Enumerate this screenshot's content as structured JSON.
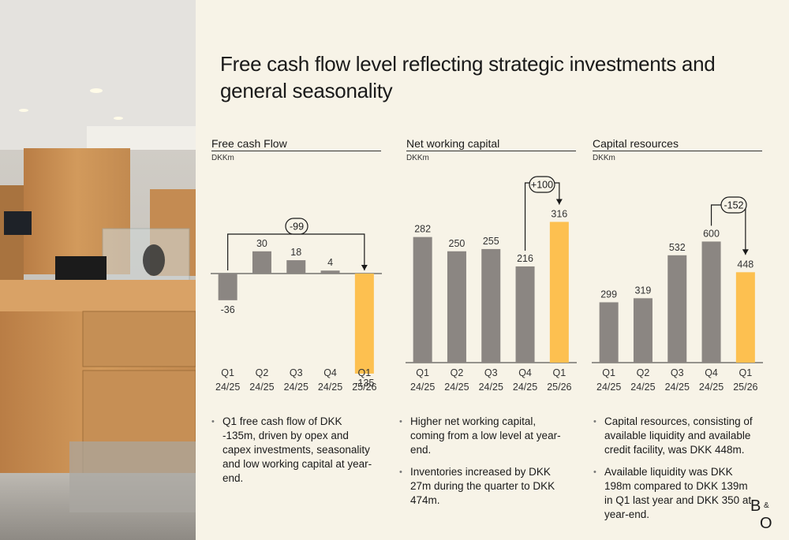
{
  "slide": {
    "title": "Free cash flow level reflecting strategic investments and general seasonality",
    "colors": {
      "bar": "#8b8682",
      "highlight": "#fdc050",
      "background": "#f7f3e7"
    }
  },
  "charts": [
    {
      "title": "Free cash Flow",
      "unit": "DKKm",
      "bullets": [
        "Q1 free cash flow of DKK -135m, driven by opex and capex investments, seasonality and low working capital at year-end."
      ]
    },
    {
      "title": "Net working capital",
      "unit": "DKKm",
      "bullets": [
        "Higher net working capital, coming from a low level at year-end.",
        "Inventories increased by DKK 27m during the quarter to DKK 474m."
      ]
    },
    {
      "title": "Capital resources",
      "unit": "DKKm",
      "bullets": [
        "Capital resources, consisting of available liquidity and available credit facility, was DKK 448m.",
        "Available liquidity was DKK 198m compared to DKK 139m in Q1 last year and DKK 350 at year-end."
      ]
    }
  ],
  "chart_data": [
    {
      "type": "bar",
      "title": "Free cash Flow",
      "ylabel": "DKKm",
      "categories": [
        [
          "Q1",
          "24/25"
        ],
        [
          "Q2",
          "24/25"
        ],
        [
          "Q3",
          "24/25"
        ],
        [
          "Q4",
          "24/25"
        ],
        [
          "Q1",
          "25/26"
        ]
      ],
      "values": [
        -36,
        30,
        18,
        4,
        -135
      ],
      "highlight_index": 4,
      "annotation": {
        "label": "-99",
        "from": 0,
        "to": 4
      }
    },
    {
      "type": "bar",
      "title": "Net working capital",
      "ylabel": "DKKm",
      "categories": [
        [
          "Q1",
          "24/25"
        ],
        [
          "Q2",
          "24/25"
        ],
        [
          "Q3",
          "24/25"
        ],
        [
          "Q4",
          "24/25"
        ],
        [
          "Q1",
          "25/26"
        ]
      ],
      "values": [
        282,
        250,
        255,
        216,
        316
      ],
      "highlight_index": 4,
      "annotation": {
        "label": "+100",
        "from": 3,
        "to": 4
      }
    },
    {
      "type": "bar",
      "title": "Capital resources",
      "ylabel": "DKKm",
      "categories": [
        [
          "Q1",
          "24/25"
        ],
        [
          "Q2",
          "24/25"
        ],
        [
          "Q3",
          "24/25"
        ],
        [
          "Q4",
          "24/25"
        ],
        [
          "Q1",
          "25/26"
        ]
      ],
      "values": [
        299,
        319,
        532,
        600,
        448
      ],
      "highlight_index": 4,
      "annotation": {
        "label": "-152",
        "from": 3,
        "to": 4
      }
    }
  ],
  "logo": {
    "text": "B&O"
  }
}
